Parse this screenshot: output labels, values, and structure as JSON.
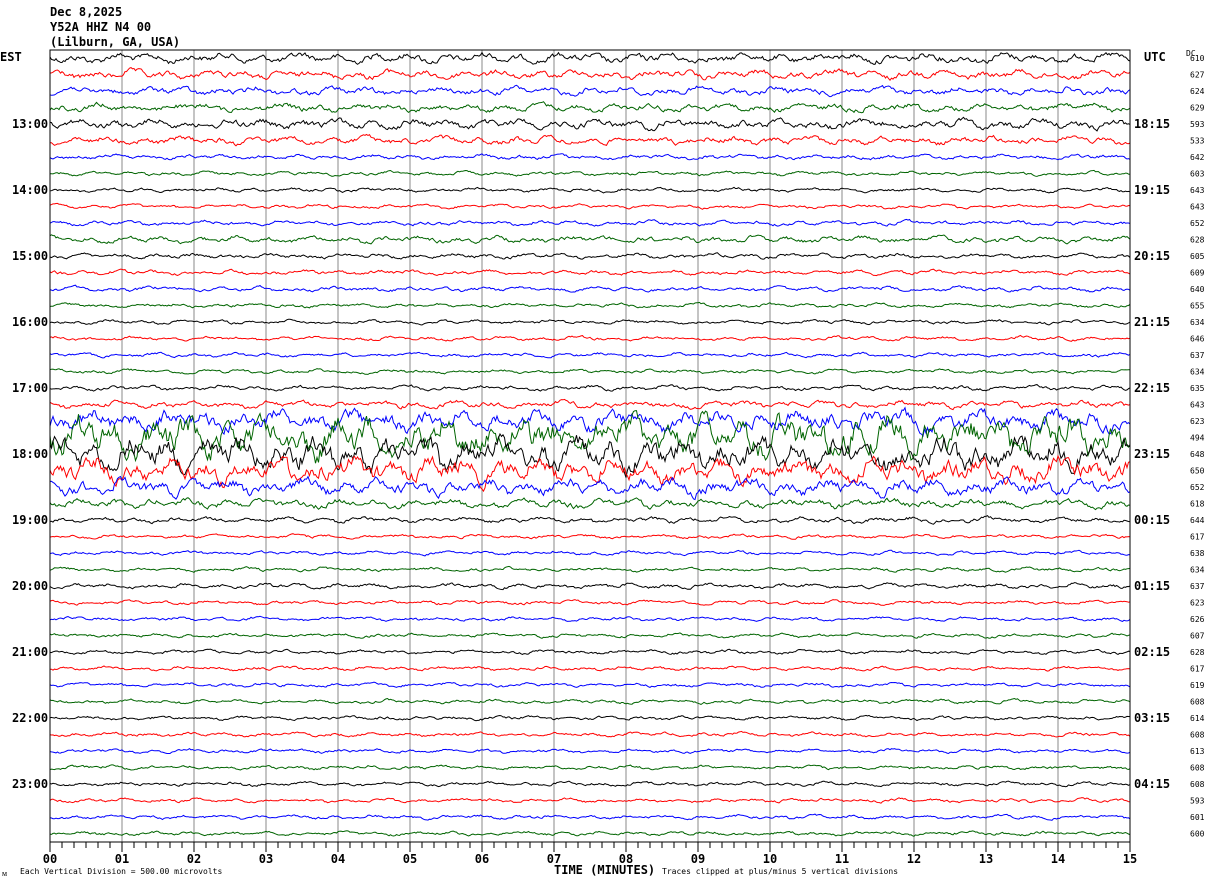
{
  "header": {
    "date": "Dec 8,2025",
    "station": "Y52A HHZ N4 00",
    "location": "(Lilburn, GA, USA)"
  },
  "chart_data": {
    "type": "line",
    "subtype": "helicorder",
    "left_timezone": "EST",
    "right_timezone": "UTC",
    "dc_label": "DC",
    "xlabel": "TIME (MINUTES)",
    "x_ticks": [
      "00",
      "01",
      "02",
      "03",
      "04",
      "05",
      "06",
      "07",
      "08",
      "09",
      "10",
      "11",
      "12",
      "13",
      "14",
      "15"
    ],
    "xlim": [
      0,
      15
    ],
    "minor_ticks_per_minute": 6,
    "trace_colors": [
      "#000000",
      "#ff0000",
      "#0000ff",
      "#006400"
    ],
    "left_labels": [
      {
        "row": 4,
        "text": "13:00"
      },
      {
        "row": 8,
        "text": "14:00"
      },
      {
        "row": 12,
        "text": "15:00"
      },
      {
        "row": 16,
        "text": "16:00"
      },
      {
        "row": 20,
        "text": "17:00"
      },
      {
        "row": 24,
        "text": "18:00"
      },
      {
        "row": 28,
        "text": "19:00"
      },
      {
        "row": 32,
        "text": "20:00"
      },
      {
        "row": 36,
        "text": "21:00"
      },
      {
        "row": 40,
        "text": "22:00"
      },
      {
        "row": 44,
        "text": "23:00"
      }
    ],
    "right_labels": [
      {
        "row": 4,
        "text": "18:15"
      },
      {
        "row": 8,
        "text": "19:15"
      },
      {
        "row": 12,
        "text": "20:15"
      },
      {
        "row": 16,
        "text": "21:15"
      },
      {
        "row": 20,
        "text": "22:15"
      },
      {
        "row": 24,
        "text": "23:15"
      },
      {
        "row": 28,
        "text": "00:15"
      },
      {
        "row": 32,
        "text": "01:15"
      },
      {
        "row": 36,
        "text": "02:15"
      },
      {
        "row": 40,
        "text": "03:15"
      },
      {
        "row": 44,
        "text": "04:15"
      }
    ],
    "dc_offsets": [
      610,
      627,
      624,
      629,
      593,
      533,
      642,
      603,
      643,
      643,
      652,
      628,
      605,
      609,
      640,
      655,
      634,
      646,
      637,
      634,
      635,
      643,
      623,
      494,
      648,
      650,
      652,
      618,
      644,
      617,
      638,
      634,
      637,
      623,
      626,
      607,
      628,
      617,
      619,
      608,
      614,
      608,
      613,
      608,
      608,
      593,
      601,
      600
    ],
    "trace_amplitude_divisions": [
      1.2,
      1.1,
      1.0,
      1.0,
      1.2,
      1.0,
      0.6,
      0.5,
      0.5,
      0.5,
      0.6,
      0.8,
      0.6,
      0.6,
      0.6,
      0.5,
      0.5,
      0.5,
      0.5,
      0.5,
      0.6,
      0.9,
      2.5,
      5,
      4,
      3,
      2,
      1.1,
      0.7,
      0.5,
      0.5,
      0.5,
      0.6,
      0.5,
      0.5,
      0.5,
      0.5,
      0.5,
      0.5,
      0.5,
      0.5,
      0.5,
      0.5,
      0.5,
      0.5,
      0.5,
      0.5,
      0.5
    ],
    "scale_note": "Each Vertical Division =  500.00 microvolts",
    "clip_note": "Traces clipped at plus/minus 5 vertical divisions"
  }
}
